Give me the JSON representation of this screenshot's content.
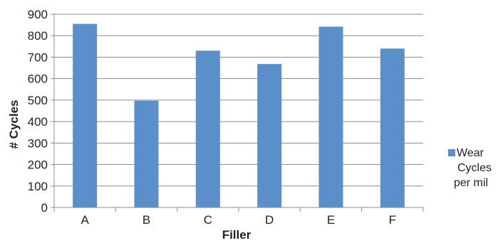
{
  "chart_data": {
    "type": "bar",
    "title": "",
    "xlabel": "Filler",
    "ylabel": "# Cycles",
    "categories": [
      "A",
      "B",
      "C",
      "D",
      "E",
      "F"
    ],
    "series": [
      {
        "name_lines": [
          "Wear",
          "Cycles",
          "per mil"
        ],
        "values": [
          855,
          497,
          730,
          668,
          842,
          740
        ],
        "color": "#5B8FCC"
      }
    ],
    "ylim": [
      0,
      900
    ],
    "yticks": [
      0,
      100,
      200,
      300,
      400,
      500,
      600,
      700,
      800,
      900
    ],
    "grid": true,
    "legend_position": "right"
  }
}
